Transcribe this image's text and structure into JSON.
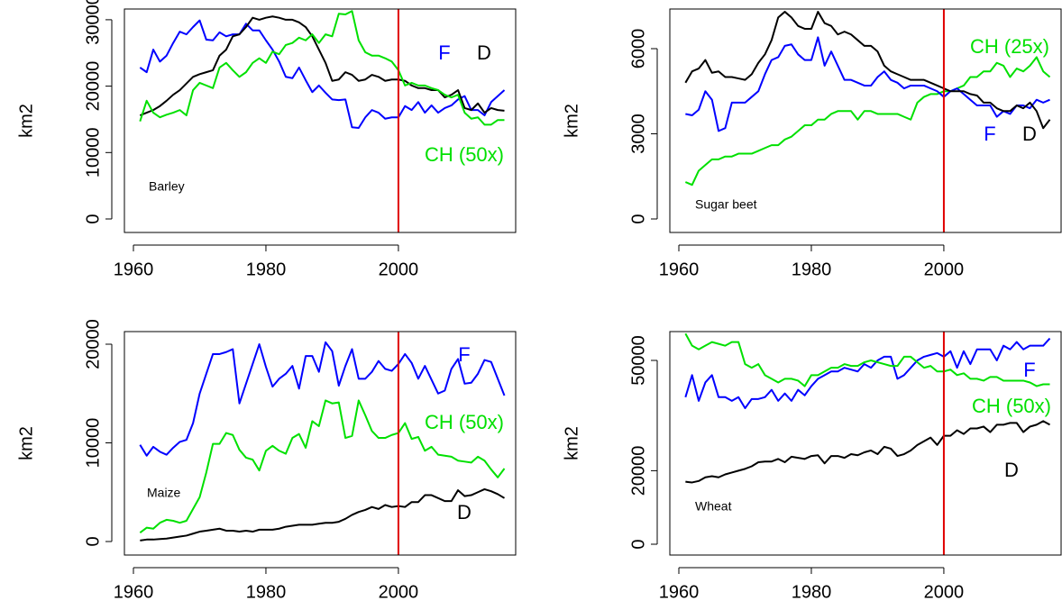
{
  "chart_data": [
    {
      "type": "line",
      "label": "Barley",
      "ylabel": "km2",
      "x": [
        1961,
        1962,
        1963,
        1964,
        1965,
        1966,
        1967,
        1968,
        1969,
        1970,
        1971,
        1972,
        1973,
        1974,
        1975,
        1976,
        1977,
        1978,
        1979,
        1980,
        1981,
        1982,
        1983,
        1984,
        1985,
        1986,
        1987,
        1988,
        1989,
        1990,
        1991,
        1992,
        1993,
        1994,
        1995,
        1996,
        1997,
        1998,
        1999,
        2000,
        2001,
        2002,
        2003,
        2004,
        2005,
        2006,
        2007,
        2008,
        2009,
        2010,
        2011,
        2012,
        2013,
        2014,
        2015,
        2016
      ],
      "xlim": [
        1958.64,
        2017.7
      ],
      "xticks": [
        1960,
        1980,
        2000
      ],
      "ylim": [
        -2035,
        31615
      ],
      "yticks": [
        0,
        10000,
        20000,
        30000
      ],
      "vline": {
        "x": 2000,
        "color": "#e00000"
      },
      "series": [
        {
          "name": "F",
          "color": "#0000ff",
          "values": [
            22800,
            22100,
            25500,
            23700,
            24600,
            26500,
            28200,
            27800,
            28900,
            29900,
            27000,
            26900,
            28100,
            27500,
            27800,
            27800,
            29400,
            28400,
            28400,
            26900,
            25500,
            23700,
            21400,
            21200,
            22800,
            20900,
            19100,
            20100,
            19000,
            18000,
            17900,
            18000,
            13800,
            13700,
            15300,
            16400,
            16000,
            15100,
            15300,
            15300,
            17000,
            16400,
            17600,
            16000,
            17100,
            16000,
            16700,
            17100,
            18000,
            18500,
            16400,
            16400,
            15600,
            17600,
            18500,
            19400
          ]
        },
        {
          "name": "D",
          "color": "#000000",
          "values": [
            15600,
            16000,
            16400,
            17000,
            17800,
            18700,
            19400,
            20400,
            21400,
            21800,
            22100,
            22400,
            24600,
            25500,
            27500,
            27800,
            28900,
            30300,
            30000,
            30300,
            30500,
            30300,
            30000,
            30000,
            29600,
            28900,
            27500,
            25500,
            23500,
            20800,
            21000,
            22100,
            21700,
            20800,
            21000,
            21700,
            21400,
            20800,
            21000,
            21000,
            20800,
            20100,
            19700,
            19700,
            19400,
            19400,
            18300,
            18700,
            19400,
            16700,
            16400,
            17400,
            16000,
            16700,
            16400,
            16300
          ]
        },
        {
          "name": "CH (50x)",
          "color": "#00e000",
          "values": [
            14700,
            17800,
            16000,
            15300,
            15700,
            16000,
            16400,
            15600,
            19400,
            20500,
            20100,
            19700,
            22800,
            23500,
            22400,
            21400,
            22100,
            23500,
            24200,
            23500,
            25200,
            24800,
            26200,
            26500,
            27300,
            26900,
            27800,
            26500,
            27800,
            27500,
            30900,
            30800,
            31300,
            26900,
            25100,
            24600,
            24600,
            24200,
            23700,
            22400,
            20100,
            20500,
            20100,
            20100,
            19700,
            19400,
            18700,
            18300,
            18700,
            16000,
            15100,
            15300,
            14200,
            14200,
            14900,
            14900
          ]
        }
      ]
    },
    {
      "type": "line",
      "label": "Sugar beet",
      "ylabel": "km2",
      "x": [
        1961,
        1962,
        1963,
        1964,
        1965,
        1966,
        1967,
        1968,
        1969,
        1970,
        1971,
        1972,
        1973,
        1974,
        1975,
        1976,
        1977,
        1978,
        1979,
        1980,
        1981,
        1982,
        1983,
        1984,
        1985,
        1986,
        1987,
        1988,
        1989,
        1990,
        1991,
        1992,
        1993,
        1994,
        1995,
        1996,
        1997,
        1998,
        1999,
        2000,
        2001,
        2002,
        2003,
        2004,
        2005,
        2006,
        2007,
        2008,
        2009,
        2010,
        2011,
        2012,
        2013,
        2014,
        2015,
        2016
      ],
      "xlim": [
        1958.64,
        2017.7
      ],
      "xticks": [
        1960,
        1980,
        2000
      ],
      "ylim": [
        -476,
        7397
      ],
      "yticks": [
        0,
        3000,
        6000
      ],
      "vline": {
        "x": 2000,
        "color": "#e00000"
      },
      "series": [
        {
          "name": "CH (25x)",
          "color": "#00e000",
          "values": [
            1300,
            1200,
            1700,
            1900,
            2100,
            2100,
            2200,
            2200,
            2300,
            2300,
            2300,
            2400,
            2500,
            2600,
            2600,
            2800,
            2900,
            3100,
            3300,
            3300,
            3500,
            3500,
            3700,
            3800,
            3800,
            3800,
            3500,
            3800,
            3800,
            3700,
            3700,
            3700,
            3700,
            3600,
            3500,
            4100,
            4300,
            4400,
            4400,
            4500,
            4500,
            4600,
            4700,
            5000,
            5000,
            5200,
            5200,
            5500,
            5400,
            5000,
            5300,
            5200,
            5400,
            5700,
            5200,
            5000
          ]
        },
        {
          "name": "F",
          "color": "#0000ff",
          "values": [
            3700,
            3650,
            3850,
            4500,
            4200,
            3100,
            3200,
            4100,
            4100,
            4100,
            4300,
            4500,
            5100,
            5600,
            5700,
            6100,
            6150,
            5800,
            5600,
            5600,
            6400,
            5400,
            5900,
            5400,
            4900,
            4900,
            4800,
            4700,
            4700,
            5000,
            5200,
            4900,
            4800,
            4600,
            4700,
            4700,
            4700,
            4600,
            4500,
            4300,
            4500,
            4600,
            4400,
            4200,
            4000,
            4000,
            4000,
            3600,
            3800,
            3700,
            4000,
            4000,
            3900,
            4200,
            4100,
            4200
          ]
        },
        {
          "name": "D",
          "color": "#000000",
          "values": [
            4800,
            5200,
            5300,
            5600,
            5150,
            5200,
            5000,
            5000,
            4950,
            4900,
            5100,
            5500,
            5800,
            6300,
            7100,
            7300,
            7100,
            6800,
            6700,
            6700,
            7300,
            6900,
            6800,
            6500,
            6600,
            6500,
            6300,
            6100,
            6100,
            5900,
            5400,
            5200,
            5100,
            5000,
            4900,
            4900,
            4900,
            4800,
            4700,
            4600,
            4500,
            4500,
            4500,
            4400,
            4350,
            4100,
            4100,
            3900,
            3800,
            3800,
            4000,
            3900,
            4100,
            3800,
            3200,
            3500
          ]
        }
      ]
    },
    {
      "type": "line",
      "label": "Maize",
      "ylabel": "km2",
      "x": [
        1961,
        1962,
        1963,
        1964,
        1965,
        1966,
        1967,
        1968,
        1969,
        1970,
        1971,
        1972,
        1973,
        1974,
        1975,
        1976,
        1977,
        1978,
        1979,
        1980,
        1981,
        1982,
        1983,
        1984,
        1985,
        1986,
        1987,
        1988,
        1989,
        1990,
        1991,
        1992,
        1993,
        1994,
        1995,
        1996,
        1997,
        1998,
        1999,
        2000,
        2001,
        2002,
        2003,
        2004,
        2005,
        2006,
        2007,
        2008,
        2009,
        2010,
        2011,
        2012,
        2013,
        2014,
        2015,
        2016
      ],
      "xlim": [
        1958.64,
        2017.7
      ],
      "xticks": [
        1960,
        1980,
        2000
      ],
      "ylim": [
        -1370,
        21280
      ],
      "yticks": [
        0,
        10000,
        20000
      ],
      "vline": {
        "x": 2000,
        "color": "#e00000"
      },
      "series": [
        {
          "name": "F",
          "color": "#0000ff",
          "values": [
            9800,
            8700,
            9600,
            9100,
            8800,
            9500,
            10100,
            10300,
            12000,
            15000,
            17000,
            19000,
            19000,
            19200,
            19500,
            14000,
            16000,
            18000,
            20000,
            17700,
            15700,
            16500,
            17000,
            17800,
            15500,
            18800,
            18800,
            17200,
            20200,
            19300,
            15800,
            17800,
            19500,
            16500,
            16500,
            17200,
            18300,
            17500,
            17300,
            18000,
            19000,
            18100,
            16500,
            17800,
            16400,
            15000,
            15300,
            17500,
            18500,
            16000,
            16100,
            17000,
            18400,
            18200,
            16500,
            14800
          ]
        },
        {
          "name": "CH (50x)",
          "color": "#00e000",
          "values": [
            900,
            1400,
            1300,
            1900,
            2200,
            2100,
            1900,
            2100,
            3300,
            4500,
            7000,
            9900,
            9900,
            11000,
            10800,
            9300,
            8500,
            8300,
            7200,
            9200,
            9700,
            9200,
            8900,
            10500,
            10900,
            9500,
            12200,
            11700,
            14300,
            14000,
            14100,
            10500,
            10700,
            14300,
            12800,
            11200,
            10500,
            10500,
            10800,
            11000,
            12000,
            10400,
            10600,
            9200,
            9600,
            8800,
            8700,
            8600,
            8200,
            8100,
            8000,
            8600,
            8200,
            7300,
            6500,
            7400
          ]
        },
        {
          "name": "D",
          "color": "#000000",
          "values": [
            100,
            200,
            200,
            250,
            300,
            400,
            500,
            600,
            800,
            1000,
            1100,
            1200,
            1300,
            1100,
            1100,
            1000,
            1100,
            1000,
            1200,
            1200,
            1200,
            1300,
            1500,
            1600,
            1700,
            1700,
            1700,
            1800,
            1900,
            1900,
            2000,
            2300,
            2700,
            3000,
            3200,
            3500,
            3300,
            3700,
            3500,
            3600,
            3500,
            4000,
            4000,
            4700,
            4700,
            4400,
            4100,
            4100,
            5200,
            4600,
            4700,
            5000,
            5300,
            5100,
            4800,
            4400
          ]
        }
      ]
    },
    {
      "type": "line",
      "label": "Wheat",
      "ylabel": "km2",
      "x": [
        1961,
        1962,
        1963,
        1964,
        1965,
        1966,
        1967,
        1968,
        1969,
        1970,
        1971,
        1972,
        1973,
        1974,
        1975,
        1976,
        1977,
        1978,
        1979,
        1980,
        1981,
        1982,
        1983,
        1984,
        1985,
        1986,
        1987,
        1988,
        1989,
        1990,
        1991,
        1992,
        1993,
        1994,
        1995,
        1996,
        1997,
        1998,
        1999,
        2000,
        2001,
        2002,
        2003,
        2004,
        2005,
        2006,
        2007,
        2008,
        2009,
        2010,
        2011,
        2012,
        2013,
        2014,
        2015,
        2016
      ],
      "xlim": [
        1958.64,
        2017.7
      ],
      "xticks": [
        1960,
        1980,
        2000
      ],
      "ylim": [
        -2941,
        57843
      ],
      "yticks": [
        0,
        20000,
        50000
      ],
      "vline": {
        "x": 2000,
        "color": "#e00000"
      },
      "series": [
        {
          "name": "F",
          "color": "#0000ff",
          "values": [
            40000,
            46000,
            39000,
            44000,
            46000,
            40000,
            40000,
            39000,
            40000,
            37000,
            39500,
            39500,
            40000,
            42000,
            39000,
            41000,
            39000,
            42000,
            40500,
            43000,
            45000,
            46000,
            47000,
            47000,
            48000,
            47500,
            47000,
            49000,
            48000,
            50000,
            51000,
            51000,
            45000,
            46000,
            48000,
            50000,
            51000,
            51500,
            52000,
            51000,
            52500,
            48000,
            52500,
            49000,
            53000,
            53000,
            53000,
            50000,
            54000,
            53000,
            55000,
            53000,
            54000,
            54000,
            54000,
            56000
          ]
        },
        {
          "name": "CH (50x)",
          "color": "#00e000",
          "values": [
            57300,
            54000,
            53000,
            54000,
            55000,
            54500,
            54000,
            55000,
            55000,
            49000,
            48000,
            49000,
            46000,
            45000,
            44000,
            45000,
            45000,
            44500,
            43000,
            46000,
            46000,
            47000,
            48000,
            48000,
            49000,
            48500,
            48500,
            49500,
            50000,
            49500,
            49000,
            48500,
            48500,
            51000,
            51000,
            49500,
            48000,
            48500,
            47000,
            47000,
            47500,
            46000,
            46500,
            45000,
            45000,
            44500,
            45500,
            45500,
            44500,
            44500,
            44500,
            44500,
            44000,
            43000,
            43500,
            43500
          ]
        },
        {
          "name": "D",
          "color": "#000000",
          "values": [
            17000,
            16800,
            17200,
            18200,
            18500,
            18200,
            19000,
            19500,
            20000,
            20500,
            21200,
            22300,
            22500,
            22500,
            23200,
            22300,
            23800,
            23500,
            23200,
            24000,
            24200,
            22000,
            24000,
            24000,
            23500,
            24500,
            24200,
            25000,
            25500,
            24500,
            26500,
            26000,
            24000,
            24500,
            25500,
            27000,
            28000,
            29000,
            27000,
            29500,
            29500,
            31000,
            30000,
            31500,
            31500,
            32000,
            30500,
            32500,
            32500,
            33000,
            33000,
            30500,
            32000,
            32500,
            33500,
            32500
          ]
        }
      ]
    }
  ]
}
